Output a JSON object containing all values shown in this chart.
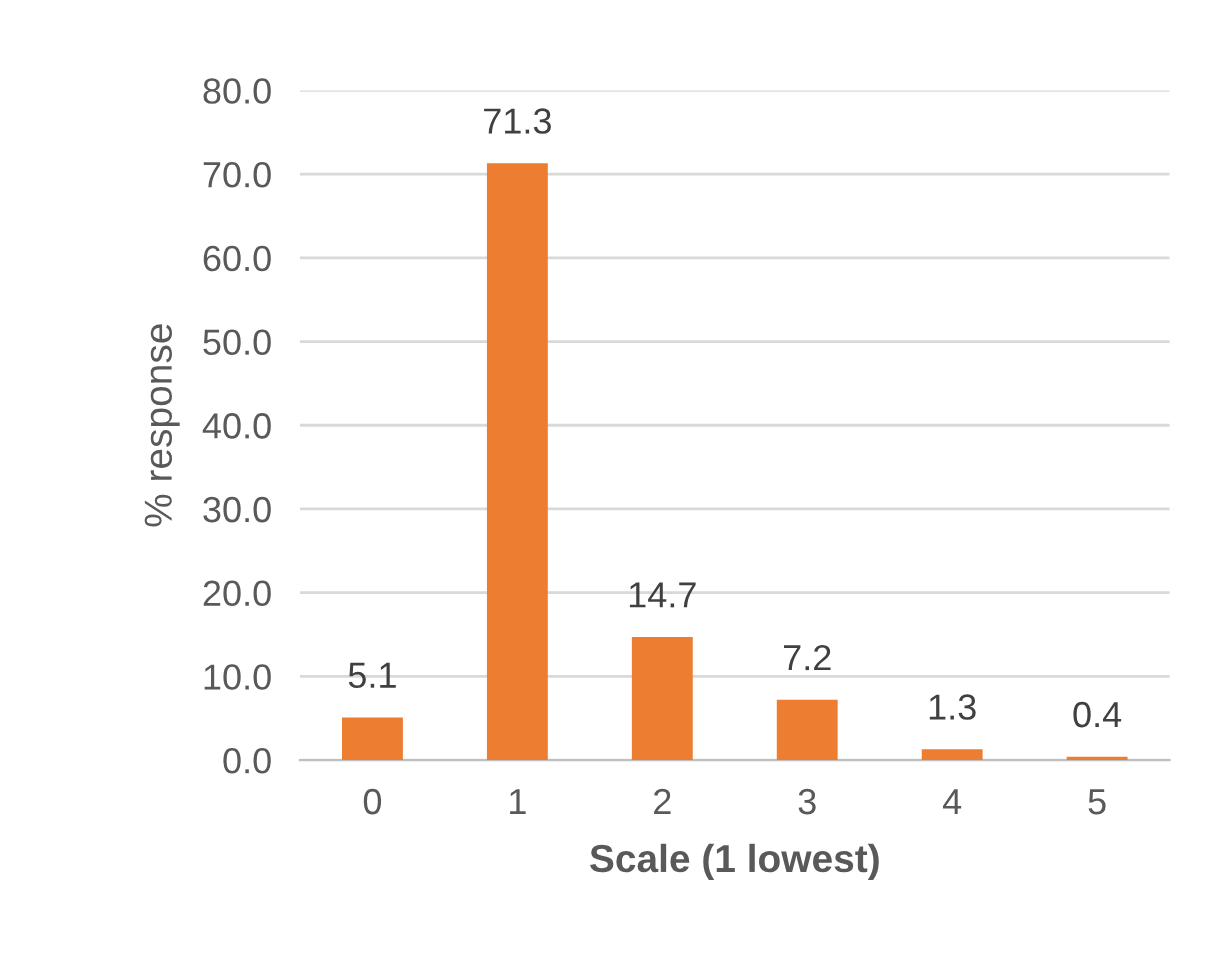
{
  "chart_data": {
    "type": "bar",
    "xlabel": "Scale (1 lowest)",
    "ylabel": "% response",
    "categories": [
      "0",
      "1",
      "2",
      "3",
      "4",
      "5"
    ],
    "values": [
      5.1,
      71.3,
      14.7,
      7.2,
      1.3,
      0.4
    ],
    "color": "#ed7d31",
    "ylim": [
      0,
      80
    ],
    "yticks": [
      {
        "value": 0,
        "label": "0.0"
      },
      {
        "value": 10,
        "label": "10.0"
      },
      {
        "value": 20,
        "label": "20.0"
      },
      {
        "value": 30,
        "label": "30.0"
      },
      {
        "value": 40,
        "label": "40.0"
      },
      {
        "value": 50,
        "label": "50.0"
      },
      {
        "value": 60,
        "label": "60.0"
      },
      {
        "value": 70,
        "label": "70.0"
      },
      {
        "value": 80,
        "label": "80.0"
      }
    ],
    "grid": "y",
    "data_labels": true
  }
}
